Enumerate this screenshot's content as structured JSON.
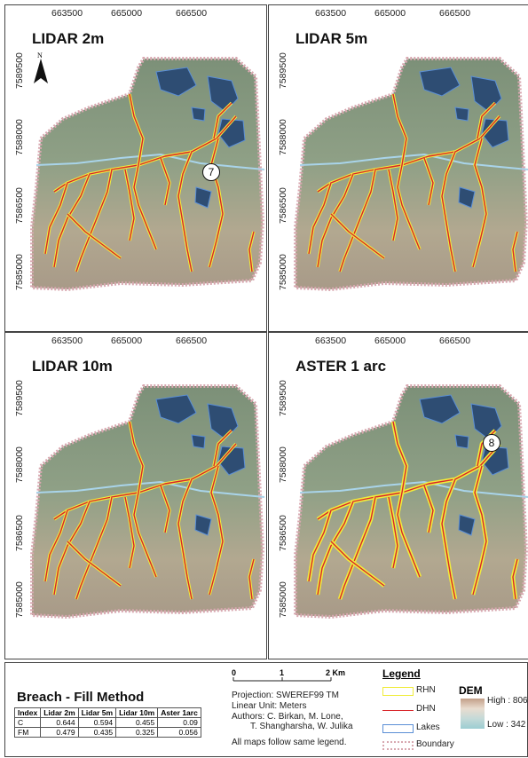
{
  "panels": [
    {
      "title": "LIDAR 2m",
      "callout": "7",
      "north_label": "N"
    },
    {
      "title": "LIDAR 5m",
      "callout": "",
      "north_label": ""
    },
    {
      "title": "LIDAR 10m",
      "callout": "",
      "north_label": ""
    },
    {
      "title": "ASTER 1 arc",
      "callout": "8",
      "north_label": ""
    }
  ],
  "x_ticks": [
    "663500",
    "665000",
    "666500"
  ],
  "y_ticks": [
    "7589500",
    "7588000",
    "7586500",
    "7585000"
  ],
  "table": {
    "title": "Breach - Fill Method",
    "headers": [
      "Index",
      "Lidar 2m",
      "Lidar 5m",
      "Lidar 10m",
      "Aster 1arc"
    ],
    "rows": [
      [
        "C",
        "0.644",
        "0.594",
        "0.455",
        "0.09"
      ],
      [
        "FM",
        "0.479",
        "0.435",
        "0.325",
        "0.056"
      ]
    ]
  },
  "scale_bar": {
    "labels": [
      "0",
      "1",
      "2 Km"
    ]
  },
  "metadata": {
    "projection": "Projection:  SWEREF99 TM",
    "linear_unit": "Linear Unit: Meters",
    "authors_1": "Authors: C. Birkan, M. Lone,",
    "authors_2": "T. Shangharsha, W. Julika",
    "note": "All maps follow same legend."
  },
  "legend": {
    "title": "Legend",
    "items": [
      {
        "label": "RHN",
        "color": "#f0ec3c"
      },
      {
        "label": "DHN",
        "color": "#d8262a"
      },
      {
        "label": "Lakes",
        "color": "#5b8fd6"
      },
      {
        "label": "Boundary",
        "color": "#d8a8b0"
      }
    ]
  },
  "dem": {
    "title": "DEM",
    "high": "High : 806",
    "low": "Low : 342"
  },
  "colors": {
    "terrain": "#8c9a80",
    "lake": "#2e4d73",
    "river_red": "#d8262a",
    "river_yellow": "#f0ec3c",
    "stream_blue": "#a9d4ea"
  }
}
